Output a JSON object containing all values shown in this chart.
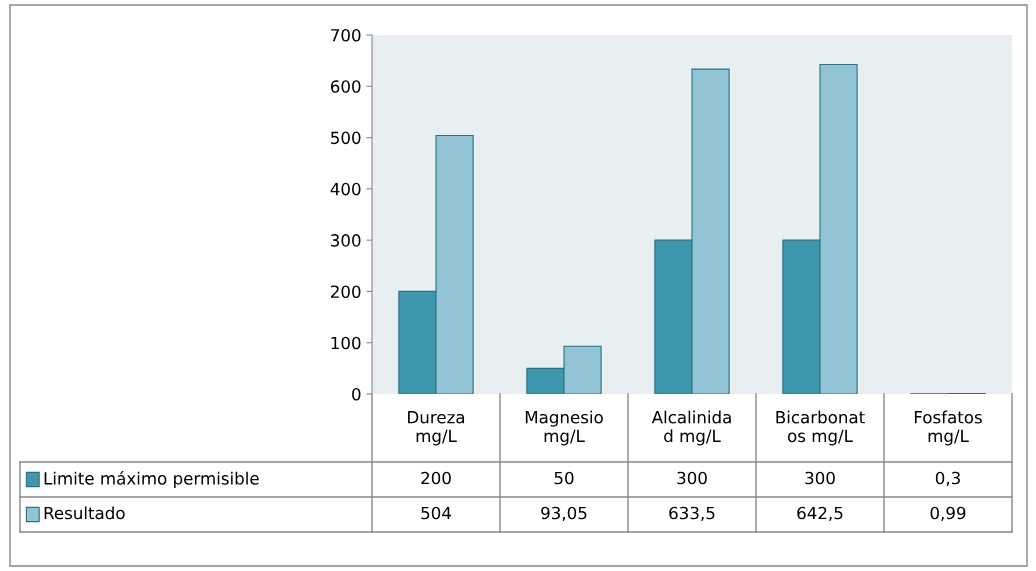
{
  "chart_data": {
    "type": "bar",
    "categories": [
      "Dureza mg/L",
      "Magnesio mg/L",
      "Alcalinidad mg/L",
      "Bicarbonatos mg/L",
      "Fosfatos mg/L"
    ],
    "series": [
      {
        "name": "Limite máximo permisible",
        "color": "#3f97ad",
        "values": [
          200,
          50,
          300,
          300,
          0.3
        ],
        "value_labels": [
          "200",
          "50",
          "300",
          "300",
          "0,3"
        ]
      },
      {
        "name": "Resultado",
        "color": "#92c4d6",
        "values": [
          504,
          93.05,
          633.5,
          642.5,
          0.99
        ],
        "value_labels": [
          "504",
          "93,05",
          "633,5",
          "642,5",
          "0,99"
        ]
      }
    ],
    "ylim": [
      0,
      700
    ],
    "yticks": [
      0,
      100,
      200,
      300,
      400,
      500,
      600,
      700
    ],
    "grid": false,
    "legend": "bottom left"
  }
}
